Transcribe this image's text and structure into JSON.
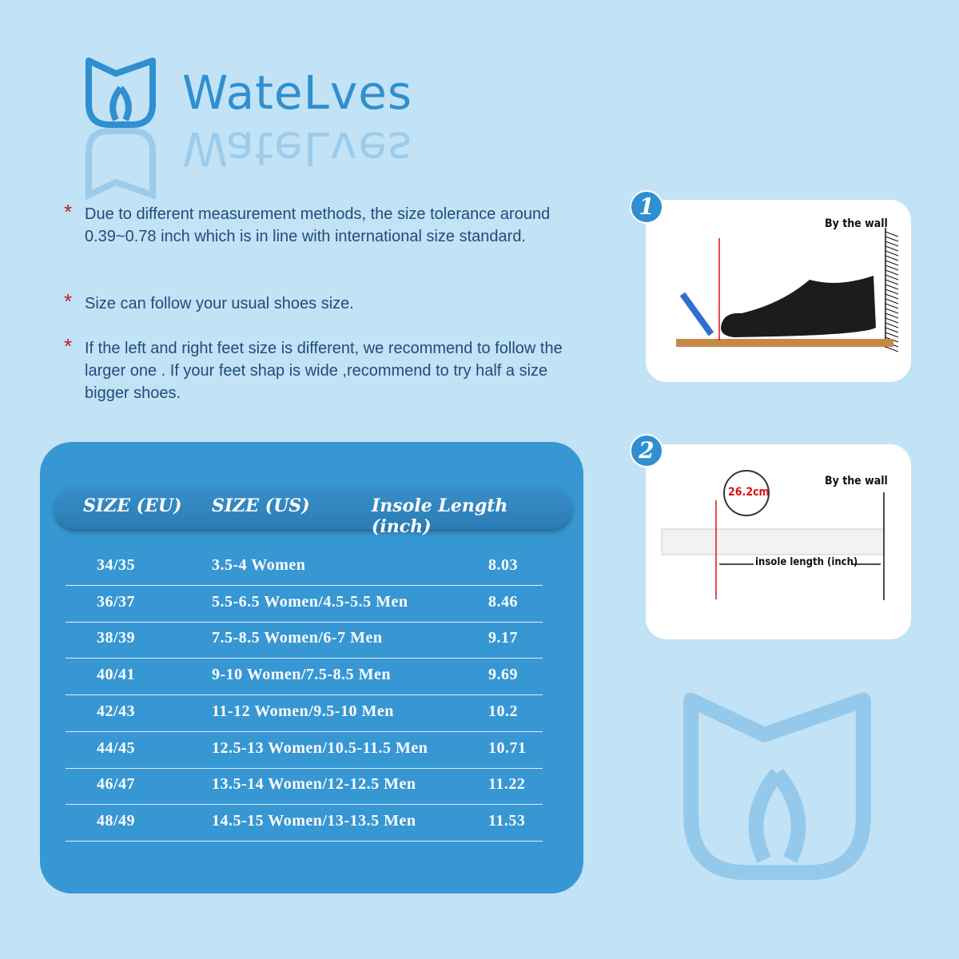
{
  "brand": {
    "name": "WateLves",
    "color": "#2f8fd0"
  },
  "notes": [
    "Due to different measurement methods,  the size tolerance around  0.39~0.78 inch which is in line with international size standard.",
    "Size can follow your usual shoes size.",
    "If the left and right feet size is different,  we recommend to follow the larger one . If your feet shap is wide ,recommend to try half a size bigger shoes."
  ],
  "table": {
    "headers": [
      "SIZE (EU)",
      "SIZE (US)",
      "Insole Length (inch)"
    ],
    "rows": [
      [
        "34/35",
        "3.5-4 Women",
        "8.03"
      ],
      [
        "36/37",
        "5.5-6.5 Women/4.5-5.5 Men",
        "8.46"
      ],
      [
        "38/39",
        "7.5-8.5 Women/6-7 Men",
        "9.17"
      ],
      [
        "40/41",
        "9-10 Women/7.5-8.5 Men",
        "9.69"
      ],
      [
        "42/43",
        "11-12 Women/9.5-10 Men",
        "10.2"
      ],
      [
        "44/45",
        "12.5-13 Women/10.5-11.5 Men",
        "10.71"
      ],
      [
        "46/47",
        "13.5-14 Women/12-12.5 Men",
        "11.22"
      ],
      [
        "48/49",
        "14.5-15 Women/13-13.5 Men",
        "11.53"
      ]
    ]
  },
  "steps": [
    {
      "number": "1",
      "wall_label": "By the wall"
    },
    {
      "number": "2",
      "wall_label": "By the wall",
      "measurement": "26.2cm",
      "arrow_label": "insole length (inch)"
    }
  ]
}
